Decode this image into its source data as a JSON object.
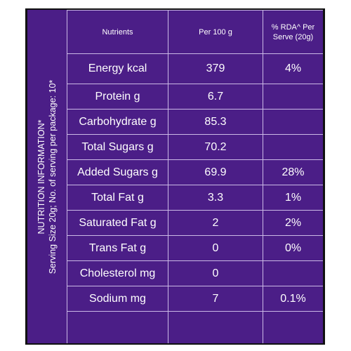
{
  "side_label": {
    "line1": "NUTRITION INFORMATION*",
    "line2": "Serving Size 20g; No. of serving per package: 10*"
  },
  "table": {
    "headers": {
      "nutrients": "Nutrients",
      "per100": "Per 100 g",
      "rda": "% RDA^ Per Serve (20g)"
    },
    "rows": [
      {
        "name": "Energy kcal",
        "per100": "379",
        "rda": "4%"
      },
      {
        "name": "Protein g",
        "per100": "6.7",
        "rda": ""
      },
      {
        "name": "Carbohydrate g",
        "per100": "85.3",
        "rda": ""
      },
      {
        "name": "Total Sugars g",
        "per100": "70.2",
        "rda": ""
      },
      {
        "name": "Added Sugars g",
        "per100": "69.9",
        "rda": "28%"
      },
      {
        "name": "Total Fat g",
        "per100": "3.3",
        "rda": "1%"
      },
      {
        "name": "Saturated Fat g",
        "per100": "2",
        "rda": "2%"
      },
      {
        "name": "Trans Fat g",
        "per100": "0",
        "rda": "0%"
      },
      {
        "name": "Cholesterol mg",
        "per100": "0",
        "rda": ""
      },
      {
        "name": "Sodium mg",
        "per100": "7",
        "rda": "0.1%"
      }
    ]
  },
  "colors": {
    "background": "#4b1e87",
    "lines": "#cbb9e6",
    "text": "#ffffff"
  }
}
